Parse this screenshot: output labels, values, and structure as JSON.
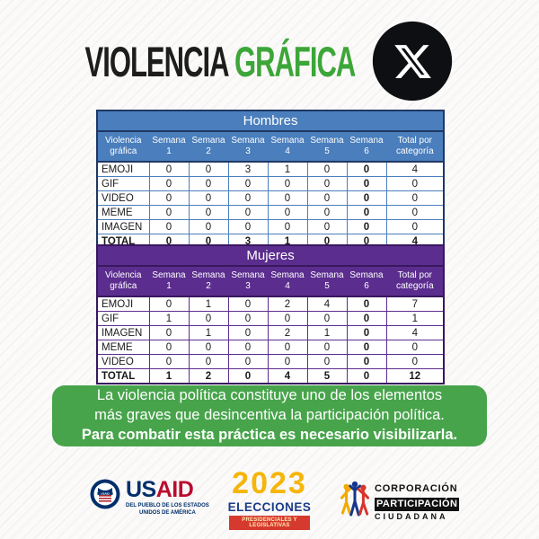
{
  "header": {
    "title_black": "VIOLENCIA",
    "title_green": "GRÁFICA",
    "x_logo_icon": "x-twitter-logo"
  },
  "colors": {
    "title_green": "#3da639",
    "message_bg": "#47a44b",
    "blue_header": "#4a7ebc",
    "blue_outer": "#1f3864",
    "purple_header": "#5b2d8e",
    "purple_outer": "#38175e",
    "x_logo_bg": "#0d0f12",
    "usaid_navy": "#002f6c",
    "usaid_red": "#ba0c2f",
    "elecciones_yellow": "#f5b50a",
    "elecciones_navy": "#1b3c87",
    "elecciones_red": "#d63a2f"
  },
  "tables": [
    {
      "title": "Hombres",
      "theme": {
        "header_bg": "#4a7ebc",
        "border": "#4a7ebc",
        "outer_border": "#1f3864"
      },
      "columns": [
        "Violencia gráfica",
        "Semana 1",
        "Semana 2",
        "Semana 3",
        "Semana 4",
        "Semana 5",
        "Semana 6",
        "Total por categoría"
      ],
      "rows": [
        {
          "label": "EMOJI",
          "values": [
            "0",
            "0",
            "3",
            "1",
            "0",
            "0",
            "4"
          ],
          "bold": false
        },
        {
          "label": "GIF",
          "values": [
            "0",
            "0",
            "0",
            "0",
            "0",
            "0",
            "0"
          ],
          "bold": false
        },
        {
          "label": "VIDEO",
          "values": [
            "0",
            "0",
            "0",
            "0",
            "0",
            "0",
            "0"
          ],
          "bold": false
        },
        {
          "label": "MEME",
          "values": [
            "0",
            "0",
            "0",
            "0",
            "0",
            "0",
            "0"
          ],
          "bold": false
        },
        {
          "label": "IMAGEN",
          "values": [
            "0",
            "0",
            "0",
            "0",
            "0",
            "0",
            "0"
          ],
          "bold": false
        },
        {
          "label": "TOTAL",
          "values": [
            "0",
            "0",
            "3",
            "1",
            "0",
            "0",
            "4"
          ],
          "bold": true
        }
      ]
    },
    {
      "title": "Mujeres",
      "theme": {
        "header_bg": "#5b2d8e",
        "border": "#5b2d8e",
        "outer_border": "#38175e"
      },
      "columns": [
        "Violencia gráfica",
        "Semana 1",
        "Semana 2",
        "Semana 3",
        "Semana 4",
        "Semana 5",
        "Semana 6",
        "Total por categoría"
      ],
      "rows": [
        {
          "label": "EMOJI",
          "values": [
            "0",
            "1",
            "0",
            "2",
            "4",
            "0",
            "7"
          ],
          "bold": false
        },
        {
          "label": "GIF",
          "values": [
            "1",
            "0",
            "0",
            "0",
            "0",
            "0",
            "1"
          ],
          "bold": false
        },
        {
          "label": "IMAGEN",
          "values": [
            "0",
            "1",
            "0",
            "2",
            "1",
            "0",
            "4"
          ],
          "bold": false
        },
        {
          "label": "MEME",
          "values": [
            "0",
            "0",
            "0",
            "0",
            "0",
            "0",
            "0"
          ],
          "bold": false
        },
        {
          "label": "VIDEO",
          "values": [
            "0",
            "0",
            "0",
            "0",
            "0",
            "0",
            "0"
          ],
          "bold": false
        },
        {
          "label": "TOTAL",
          "values": [
            "1",
            "2",
            "0",
            "4",
            "5",
            "0",
            "12"
          ],
          "bold": true
        }
      ]
    }
  ],
  "message": {
    "line1": "La violencia política constituye uno de los elementos",
    "line2": "más graves que desincentiva la participación política.",
    "line3": "Para combatir esta práctica es necesario visibilizarla."
  },
  "footer": {
    "usaid": {
      "seal_icon": "usaid-seal",
      "word_us": "US",
      "word_aid": "AID",
      "tagline1": "DEL PUEBLO DE LOS ESTADOS",
      "tagline2": "UNIDOS DE AMÉRICA"
    },
    "elecciones": {
      "year": "2023",
      "title": "ELECCIONES",
      "subtitle": "PRESIDENCIALES Y LEGISLATIVAS"
    },
    "cpc": {
      "figures_icon": "people-figures",
      "line1": "CORPORACIÓN",
      "line2": "PARTICIPACIÓN",
      "line3": "CIUDADANA"
    }
  },
  "chart_data": [
    {
      "type": "table",
      "title": "Hombres",
      "columns": [
        "Violencia gráfica",
        "Semana 1",
        "Semana 2",
        "Semana 3",
        "Semana 4",
        "Semana 5",
        "Semana 6",
        "Total por categoría"
      ],
      "rows": [
        [
          "EMOJI",
          0,
          0,
          3,
          1,
          0,
          0,
          4
        ],
        [
          "GIF",
          0,
          0,
          0,
          0,
          0,
          0,
          0
        ],
        [
          "VIDEO",
          0,
          0,
          0,
          0,
          0,
          0,
          0
        ],
        [
          "MEME",
          0,
          0,
          0,
          0,
          0,
          0,
          0
        ],
        [
          "IMAGEN",
          0,
          0,
          0,
          0,
          0,
          0,
          0
        ],
        [
          "TOTAL",
          0,
          0,
          3,
          1,
          0,
          0,
          4
        ]
      ]
    },
    {
      "type": "table",
      "title": "Mujeres",
      "columns": [
        "Violencia gráfica",
        "Semana 1",
        "Semana 2",
        "Semana 3",
        "Semana 4",
        "Semana 5",
        "Semana 6",
        "Total por categoría"
      ],
      "rows": [
        [
          "EMOJI",
          0,
          1,
          0,
          2,
          4,
          0,
          7
        ],
        [
          "GIF",
          1,
          0,
          0,
          0,
          0,
          0,
          1
        ],
        [
          "IMAGEN",
          0,
          1,
          0,
          2,
          1,
          0,
          4
        ],
        [
          "MEME",
          0,
          0,
          0,
          0,
          0,
          0,
          0
        ],
        [
          "VIDEO",
          0,
          0,
          0,
          0,
          0,
          0,
          0
        ],
        [
          "TOTAL",
          1,
          2,
          0,
          4,
          5,
          0,
          12
        ]
      ]
    }
  ]
}
